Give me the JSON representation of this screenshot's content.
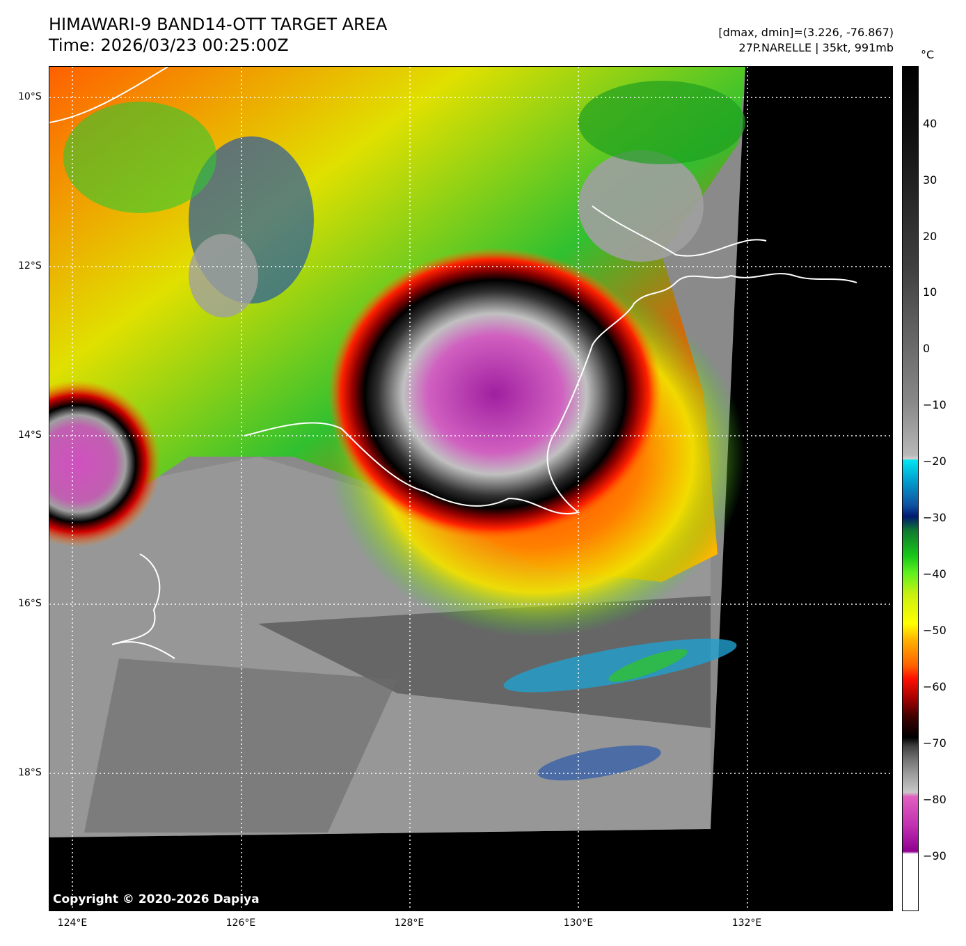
{
  "header": {
    "title": "HIMAWARI-9 BAND14-OTT TARGET AREA",
    "time": "Time: 2026/03/23 00:25:00Z",
    "dmax_dmin": "[dmax, dmin]=(3.226, -76.867)",
    "storm": "27P.NARELLE | 35kt, 991mb"
  },
  "map": {
    "copyright": "Copyright © 2020-2026 Dapiya",
    "lat_labels": [
      "10°S",
      "12°S",
      "14°S",
      "16°S",
      "18°S"
    ],
    "lon_labels": [
      "124°E",
      "126°E",
      "128°E",
      "130°E",
      "132°E"
    ],
    "gridline_style": "dotted white"
  },
  "colorbar": {
    "unit": "°C",
    "ticks": [
      "40",
      "30",
      "20",
      "10",
      "0",
      "−10",
      "−20",
      "−30",
      "−40",
      "−50",
      "−60",
      "−70",
      "−80",
      "−90"
    ]
  },
  "colors": {
    "cold_top_magenta": "#d050c0",
    "background_black": "#000000",
    "coastline": "#ffffff"
  }
}
